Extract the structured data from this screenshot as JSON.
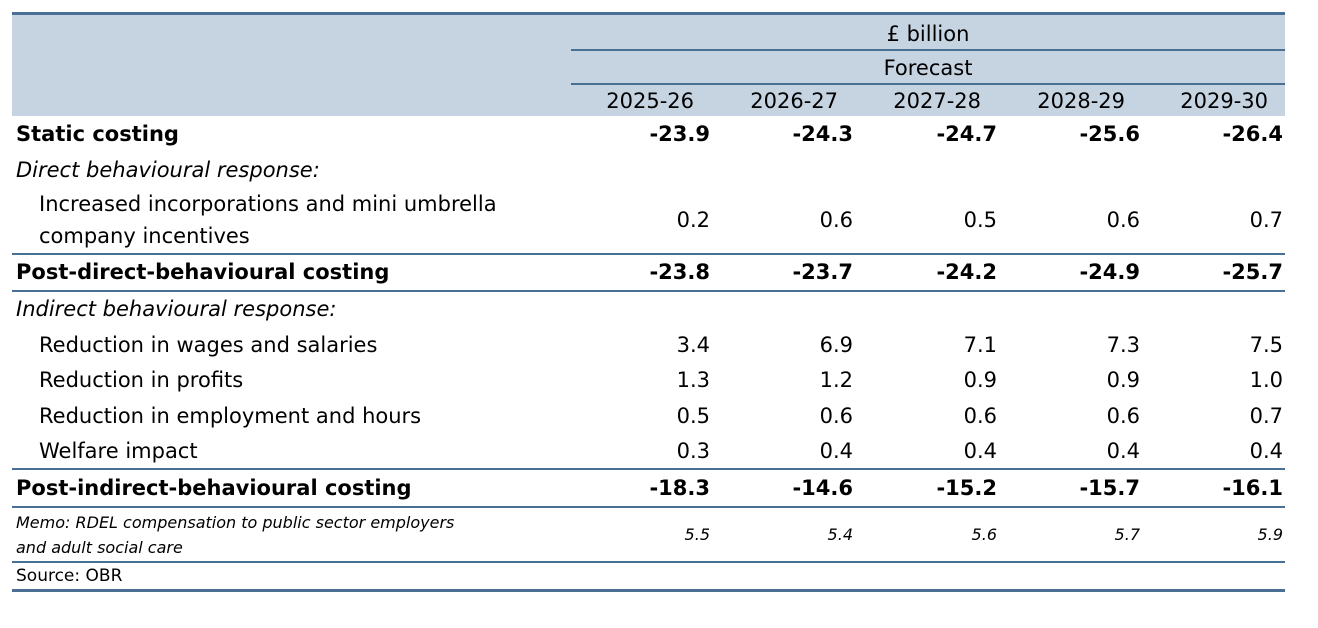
{
  "header": {
    "unit": "£ billion",
    "forecast": "Forecast",
    "years": [
      "2025-26",
      "2026-27",
      "2027-28",
      "2028-29",
      "2029-30"
    ]
  },
  "rows": {
    "static": {
      "label": "Static costing",
      "values": [
        "-23.9",
        "-24.3",
        "-24.7",
        "-25.6",
        "-26.4"
      ]
    },
    "direct_heading": {
      "label": "Direct behavioural response:"
    },
    "incorporations": {
      "label_line1": "Increased incorporations and mini umbrella",
      "label_line2": "company incentives",
      "values": [
        "0.2",
        "0.6",
        "0.5",
        "0.6",
        "0.7"
      ]
    },
    "post_direct": {
      "label": "Post-direct-behavioural costing",
      "values": [
        "-23.8",
        "-23.7",
        "-24.2",
        "-24.9",
        "-25.7"
      ]
    },
    "indirect_heading": {
      "label": "Indirect behavioural response:"
    },
    "wages": {
      "label": "Reduction in wages and salaries",
      "values": [
        "3.4",
        "6.9",
        "7.1",
        "7.3",
        "7.5"
      ]
    },
    "profits": {
      "label": "Reduction in profits",
      "values": [
        "1.3",
        "1.2",
        "0.9",
        "0.9",
        "1.0"
      ]
    },
    "employment": {
      "label": "Reduction in employment and hours",
      "values": [
        "0.5",
        "0.6",
        "0.6",
        "0.6",
        "0.7"
      ]
    },
    "welfare": {
      "label": "Welfare impact",
      "values": [
        "0.3",
        "0.4",
        "0.4",
        "0.4",
        "0.4"
      ]
    },
    "post_indirect": {
      "label": "Post-indirect-behavioural costing",
      "values": [
        "-18.3",
        "-14.6",
        "-15.2",
        "-15.7",
        "-16.1"
      ]
    },
    "memo": {
      "label_line1": "Memo: RDEL compensation to public sector employers",
      "label_line2": "and adult social care",
      "values": [
        "5.5",
        "5.4",
        "5.6",
        "5.7",
        "5.9"
      ]
    }
  },
  "source": "Source: OBR"
}
